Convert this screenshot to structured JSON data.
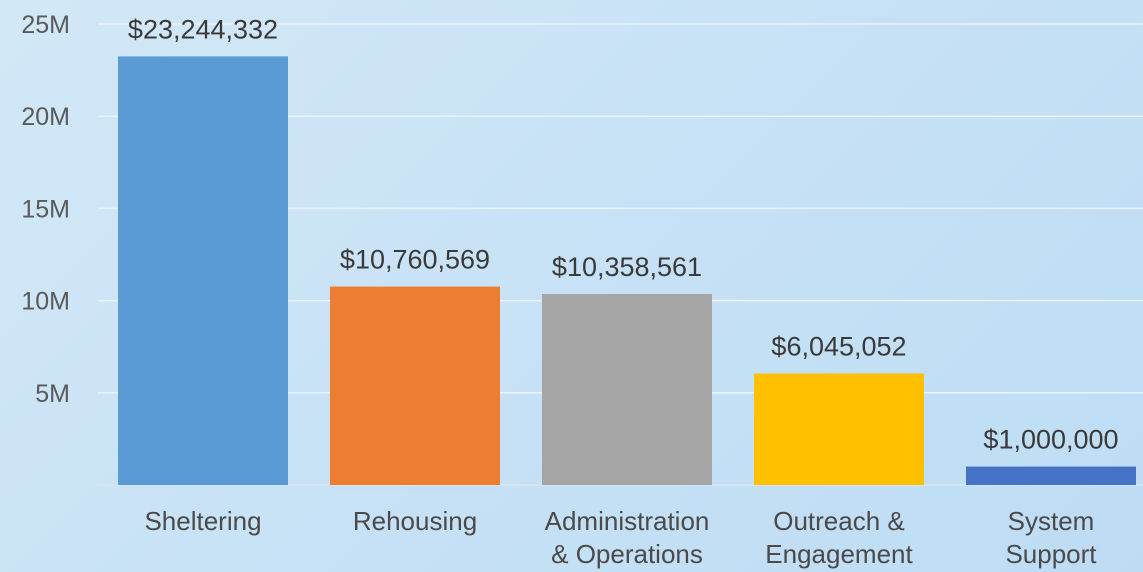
{
  "chart_data": {
    "type": "bar",
    "title": "",
    "xlabel": "",
    "ylabel": "",
    "ylim": [
      0,
      25000000
    ],
    "y_ticks": [
      {
        "value": 5000000,
        "label": "5M"
      },
      {
        "value": 10000000,
        "label": "10M"
      },
      {
        "value": 15000000,
        "label": "15M"
      },
      {
        "value": 20000000,
        "label": "20M"
      },
      {
        "value": 25000000,
        "label": "25M"
      }
    ],
    "grid": true,
    "legend": "none",
    "categories": [
      [
        "Sheltering"
      ],
      [
        "Rehousing"
      ],
      [
        "Administration",
        "& Operations"
      ],
      [
        "Outreach &",
        "Engagement"
      ],
      [
        "System",
        "Support"
      ]
    ],
    "values": [
      23244332,
      10760569,
      10358561,
      6045052,
      1000000
    ],
    "data_labels": [
      "$23,244,332",
      "$10,760,569",
      "$10,358,561",
      "$6,045,052",
      "$1,000,000"
    ],
    "colors": [
      "#5b9bd5",
      "#ed7d31",
      "#a5a5a5",
      "#ffc000",
      "#4472c4"
    ]
  }
}
